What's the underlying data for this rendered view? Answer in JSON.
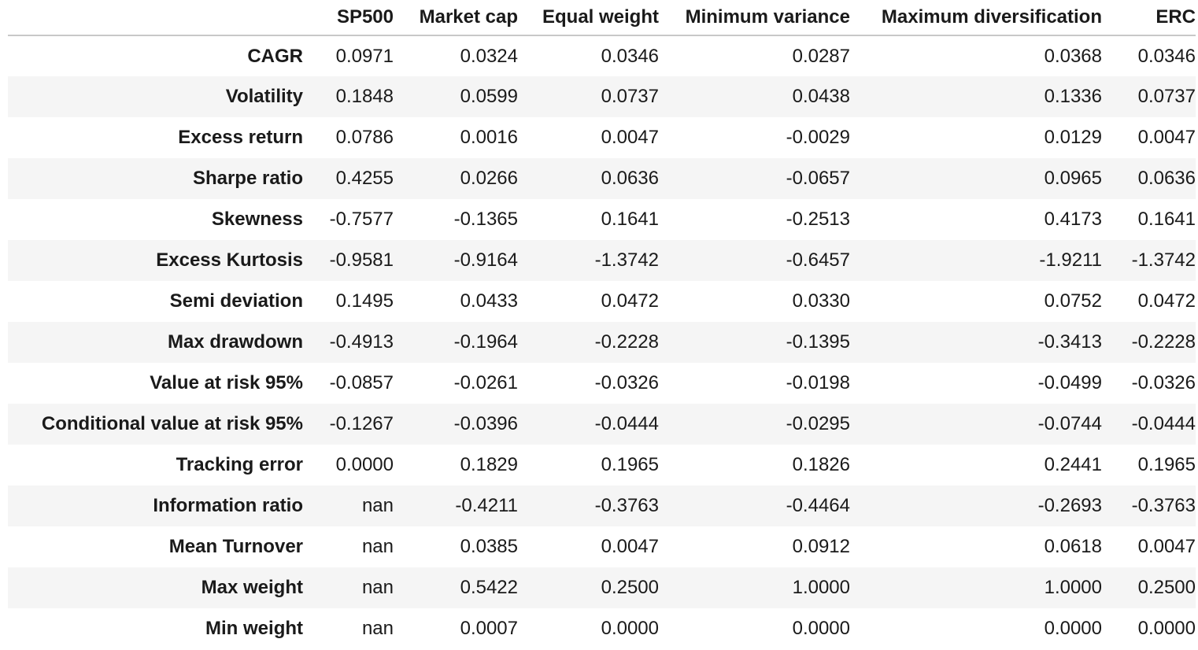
{
  "columns": [
    "",
    "SP500",
    "Market cap",
    "Equal weight",
    "Minimum variance",
    "Maximum diversification",
    "ERC"
  ],
  "rows": [
    {
      "label": "CAGR",
      "values": [
        "0.0971",
        "0.0324",
        "0.0346",
        "0.0287",
        "0.0368",
        "0.0346"
      ]
    },
    {
      "label": "Volatility",
      "values": [
        "0.1848",
        "0.0599",
        "0.0737",
        "0.0438",
        "0.1336",
        "0.0737"
      ]
    },
    {
      "label": "Excess return",
      "values": [
        "0.0786",
        "0.0016",
        "0.0047",
        "-0.0029",
        "0.0129",
        "0.0047"
      ]
    },
    {
      "label": "Sharpe ratio",
      "values": [
        "0.4255",
        "0.0266",
        "0.0636",
        "-0.0657",
        "0.0965",
        "0.0636"
      ]
    },
    {
      "label": "Skewness",
      "values": [
        "-0.7577",
        "-0.1365",
        "0.1641",
        "-0.2513",
        "0.4173",
        "0.1641"
      ]
    },
    {
      "label": "Excess Kurtosis",
      "values": [
        "-0.9581",
        "-0.9164",
        "-1.3742",
        "-0.6457",
        "-1.9211",
        "-1.3742"
      ]
    },
    {
      "label": "Semi deviation",
      "values": [
        "0.1495",
        "0.0433",
        "0.0472",
        "0.0330",
        "0.0752",
        "0.0472"
      ]
    },
    {
      "label": "Max drawdown",
      "values": [
        "-0.4913",
        "-0.1964",
        "-0.2228",
        "-0.1395",
        "-0.3413",
        "-0.2228"
      ]
    },
    {
      "label": "Value at risk 95%",
      "values": [
        "-0.0857",
        "-0.0261",
        "-0.0326",
        "-0.0198",
        "-0.0499",
        "-0.0326"
      ]
    },
    {
      "label": "Conditional value at risk 95%",
      "values": [
        "-0.1267",
        "-0.0396",
        "-0.0444",
        "-0.0295",
        "-0.0744",
        "-0.0444"
      ]
    },
    {
      "label": "Tracking error",
      "values": [
        "0.0000",
        "0.1829",
        "0.1965",
        "0.1826",
        "0.2441",
        "0.1965"
      ]
    },
    {
      "label": "Information ratio",
      "values": [
        "nan",
        "-0.4211",
        "-0.3763",
        "-0.4464",
        "-0.2693",
        "-0.3763"
      ]
    },
    {
      "label": "Mean Turnover",
      "values": [
        "nan",
        "0.0385",
        "0.0047",
        "0.0912",
        "0.0618",
        "0.0047"
      ]
    },
    {
      "label": "Max weight",
      "values": [
        "nan",
        "0.5422",
        "0.2500",
        "1.0000",
        "1.0000",
        "0.2500"
      ]
    },
    {
      "label": "Min weight",
      "values": [
        "nan",
        "0.0007",
        "0.0000",
        "0.0000",
        "0.0000",
        "0.0000"
      ]
    }
  ]
}
